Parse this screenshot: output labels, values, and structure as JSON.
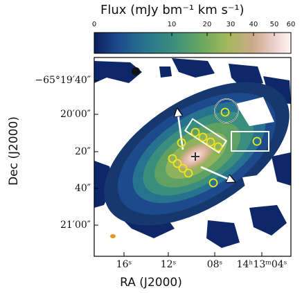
{
  "chart_data": {
    "type": "heatmap",
    "title": "",
    "colorbar": {
      "label": "Flux (mJy bm⁻¹ km s⁻¹)",
      "tick_labels": [
        "0",
        "10",
        "20",
        "30",
        "40",
        "50",
        "60"
      ],
      "range": [
        0,
        60
      ],
      "scale": "nonlinear (stretched toward high values)",
      "colormap": [
        "#0b1e5c",
        "#1d4a8c",
        "#27728f",
        "#3a8e7e",
        "#6aa85f",
        "#a6b75c",
        "#c8a987",
        "#e8c9c4",
        "#fff5f2"
      ]
    },
    "xaxis": {
      "label": "RA (J2000)",
      "tick_labels": [
        "16ˢ",
        "12ˢ",
        "08ˢ",
        "14ʰ13ᵐ04ˢ"
      ],
      "inverted": true
    },
    "yaxis": {
      "label": "Dec (J2000)",
      "tick_labels": [
        "−65°19′40″",
        "20′00″",
        "20″",
        "40″",
        "21′00″"
      ]
    },
    "features": {
      "nucleus_marker": "cross",
      "yellow_circles": 13,
      "rectangles": 2,
      "large_circle": 1,
      "arrows": 2,
      "beam_color": "#e69520"
    }
  }
}
